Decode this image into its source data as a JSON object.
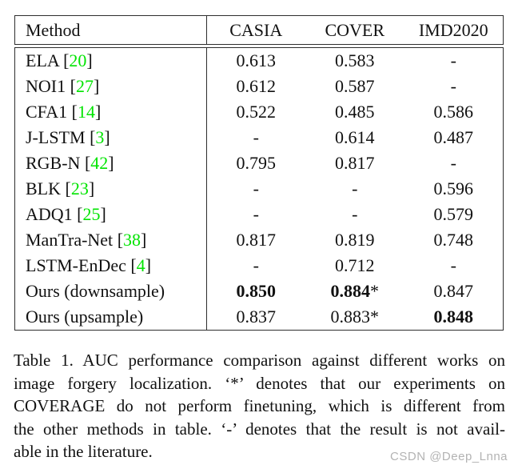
{
  "colors": {
    "text": "#111111",
    "border": "#2e2e2e",
    "citation_green": "#00e400",
    "watermark_gray": "#b3b3b3"
  },
  "table": {
    "columns": [
      "Method",
      "CASIA",
      "COVER",
      "IMD2020"
    ],
    "cite_brackets": [
      "[",
      "]"
    ],
    "rows": [
      {
        "method": "ELA",
        "cite": "20",
        "values": [
          {
            "text": "0.613"
          },
          {
            "text": "0.583"
          },
          {
            "text": "-"
          }
        ]
      },
      {
        "method": "NOI1",
        "cite": "27",
        "values": [
          {
            "text": "0.612"
          },
          {
            "text": "0.587"
          },
          {
            "text": "-"
          }
        ]
      },
      {
        "method": "CFA1",
        "cite": "14",
        "values": [
          {
            "text": "0.522"
          },
          {
            "text": "0.485"
          },
          {
            "text": "0.586"
          }
        ]
      },
      {
        "method": "J-LSTM",
        "cite": "3",
        "values": [
          {
            "text": "-"
          },
          {
            "text": "0.614"
          },
          {
            "text": "0.487"
          }
        ]
      },
      {
        "method": "RGB-N",
        "cite": "42",
        "values": [
          {
            "text": "0.795"
          },
          {
            "text": "0.817"
          },
          {
            "text": "-"
          }
        ]
      },
      {
        "method": "BLK",
        "cite": "23",
        "values": [
          {
            "text": "-"
          },
          {
            "text": "-"
          },
          {
            "text": "0.596"
          }
        ]
      },
      {
        "method": "ADQ1",
        "cite": "25",
        "values": [
          {
            "text": "-"
          },
          {
            "text": "-"
          },
          {
            "text": "0.579"
          }
        ]
      },
      {
        "method": "ManTra-Net",
        "cite": "38",
        "values": [
          {
            "text": "0.817"
          },
          {
            "text": "0.819"
          },
          {
            "text": "0.748"
          }
        ]
      },
      {
        "method": "LSTM-EnDec",
        "cite": "4",
        "values": [
          {
            "text": "-"
          },
          {
            "text": "0.712"
          },
          {
            "text": "-"
          }
        ]
      },
      {
        "method": "Ours (downsample)",
        "values": [
          {
            "text": "0.850",
            "bold": true
          },
          {
            "text": "0.884",
            "bold": true,
            "suffix": "*"
          },
          {
            "text": "0.847"
          }
        ]
      },
      {
        "method": "Ours (upsample)",
        "values": [
          {
            "text": "0.837"
          },
          {
            "text": "0.883",
            "suffix": "*"
          },
          {
            "text": "0.848",
            "bold": true
          }
        ]
      }
    ]
  },
  "caption": {
    "lines": [
      "Table 1. AUC performance comparison against different works on",
      "image forgery localization. ‘*’ denotes that our experiments on",
      "COVERAGE do not perform finetuning, which is different from",
      "the other methods in table. ‘-’ denotes that the result is not avail-",
      "able in the literature."
    ]
  },
  "watermark": {
    "text": "CSDN @Deep_Lnna"
  }
}
